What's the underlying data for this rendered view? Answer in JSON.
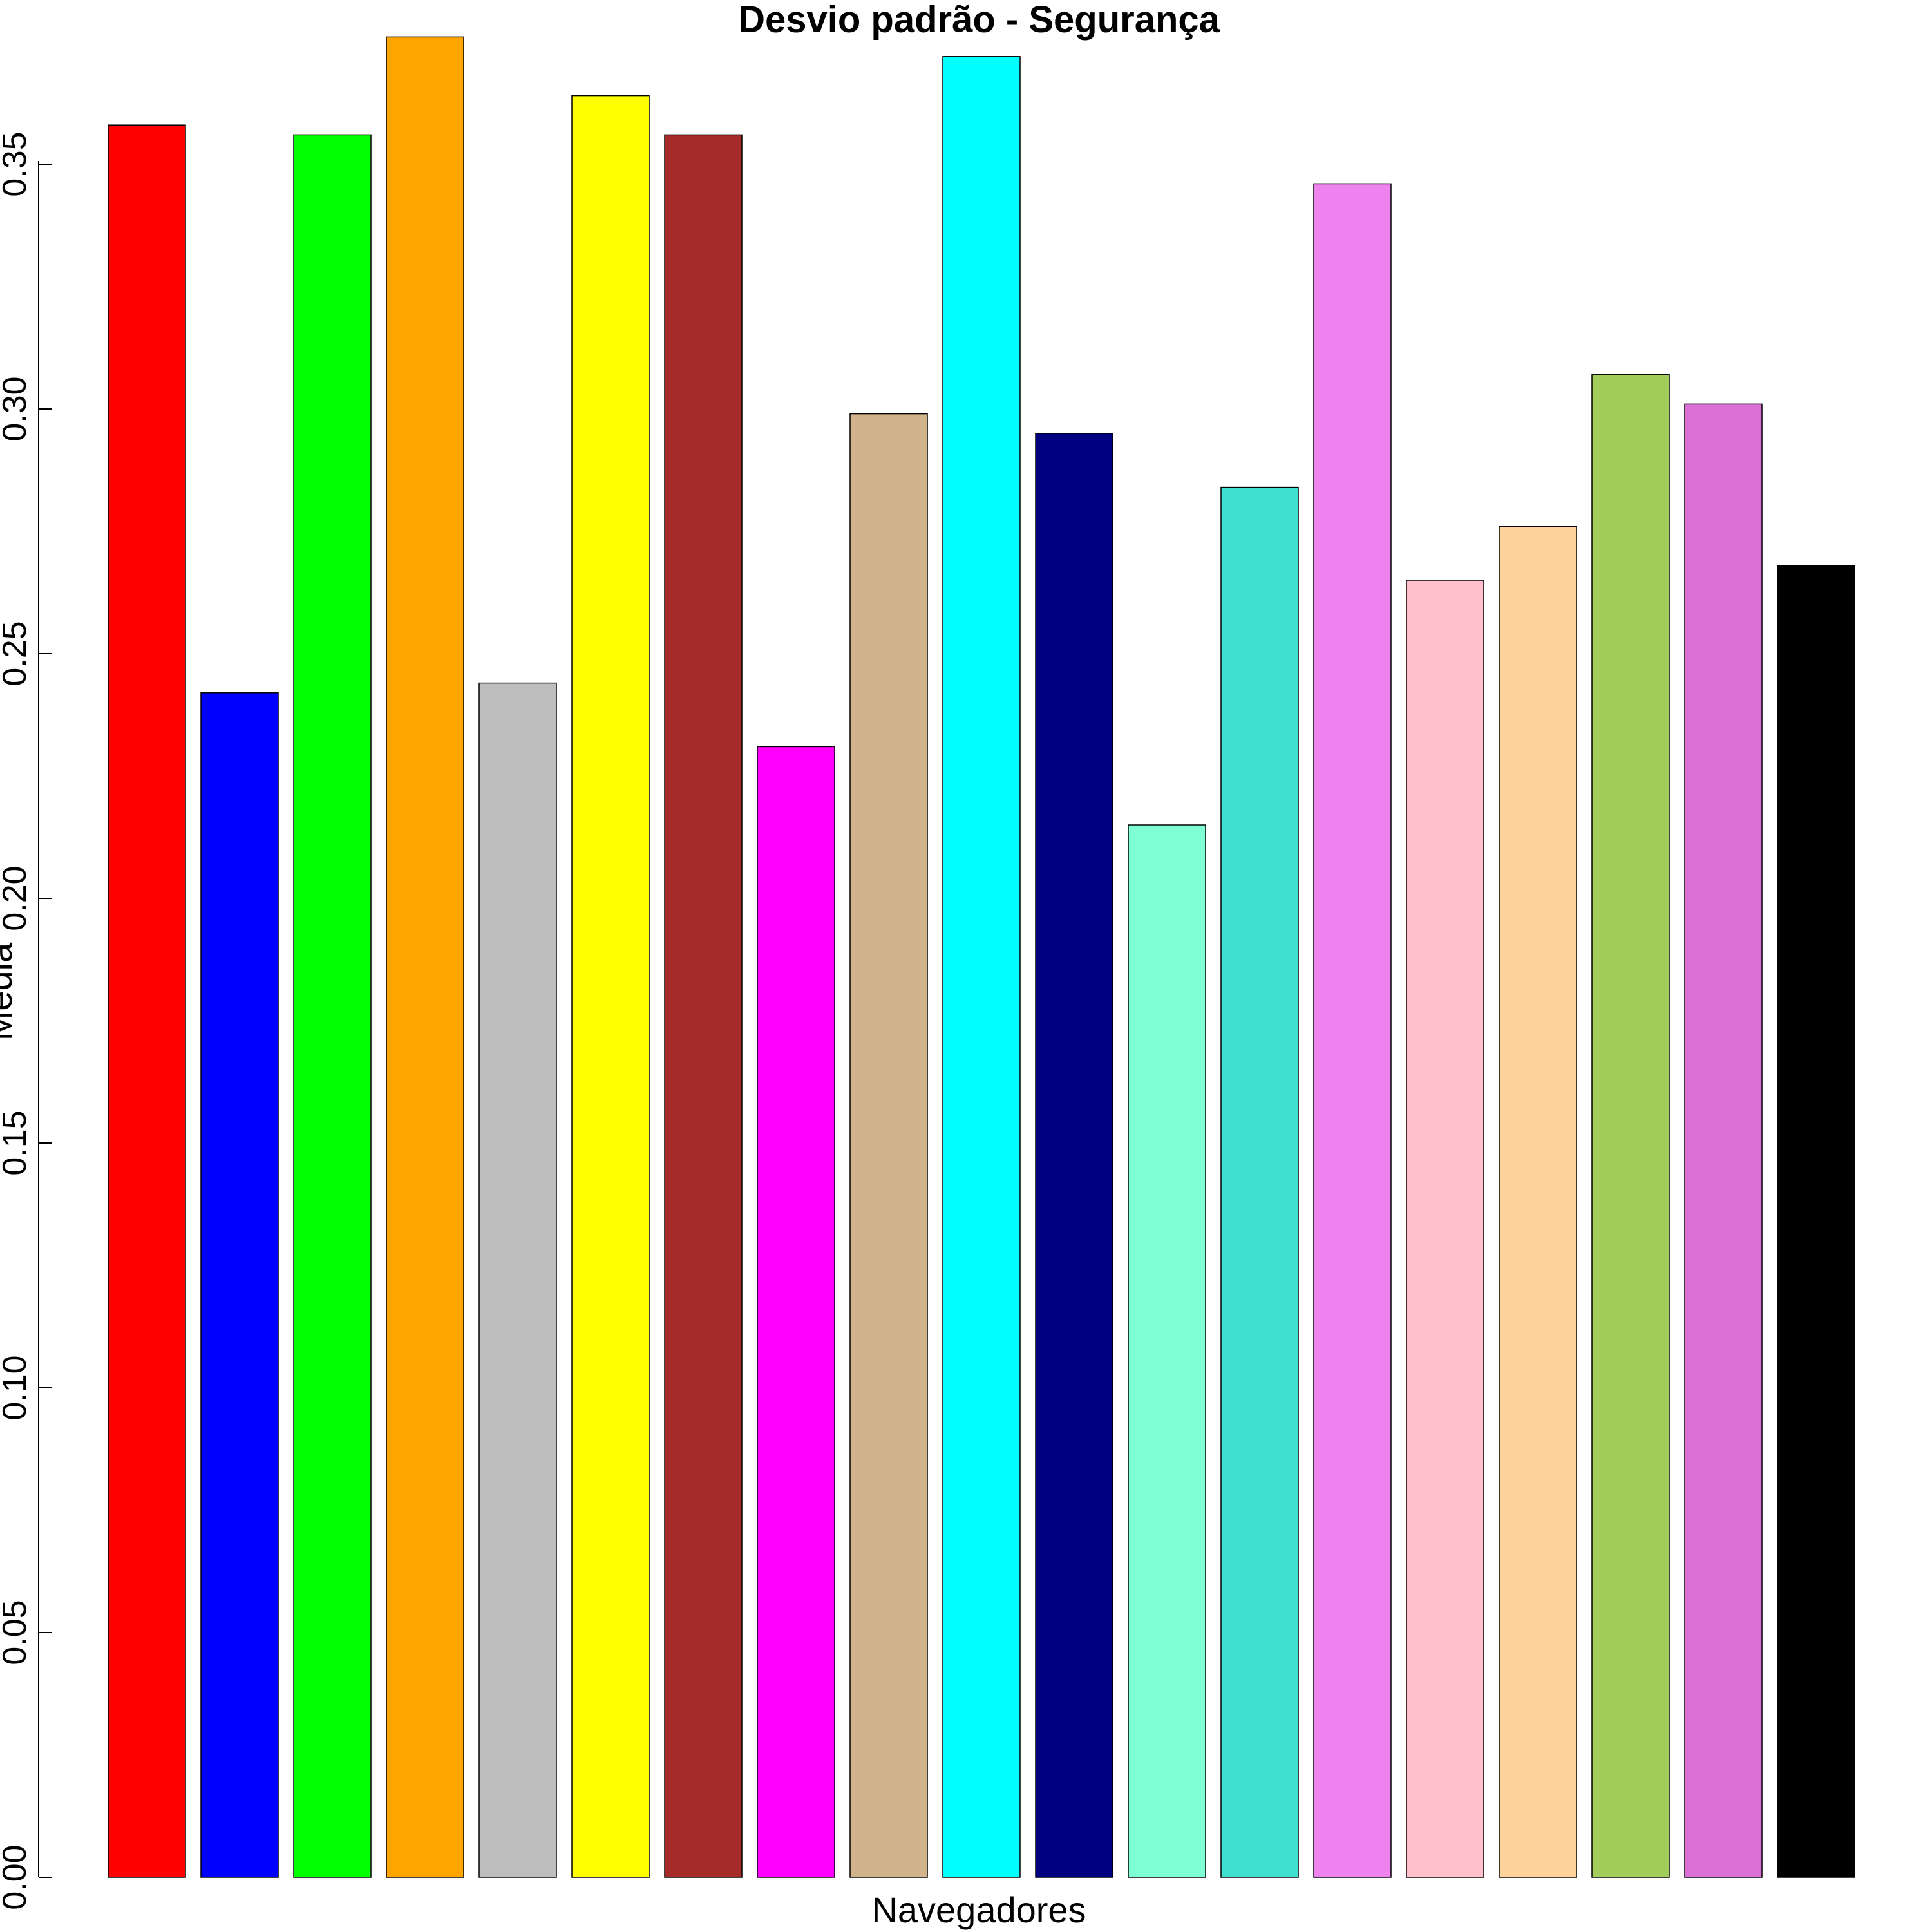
{
  "chart_data": {
    "type": "bar",
    "title": "Desvio padrão - Segurança",
    "xlabel": "Navegadores",
    "ylabel": "Media",
    "ylim": [
      0,
      0.37
    ],
    "yticks": [
      "0.00",
      "0.05",
      "0.10",
      "0.15",
      "0.20",
      "0.25",
      "0.30",
      "0.35"
    ],
    "grid": false,
    "legend": "none",
    "values": [
      0.358,
      0.242,
      0.356,
      0.376,
      0.244,
      0.364,
      0.356,
      0.231,
      0.299,
      0.372,
      0.295,
      0.215,
      0.284,
      0.346,
      0.265,
      0.276,
      0.307,
      0.301,
      0.268
    ],
    "colors": [
      "#FF0000",
      "#0000FF",
      "#00FF00",
      "#FFA500",
      "#BEBEBE",
      "#FFFF00",
      "#A52A2A",
      "#FF00FF",
      "#D2B48C",
      "#00FFFF",
      "#000080",
      "#7FFFD4",
      "#40E0D0",
      "#EE82EE",
      "#FFC0CB",
      "#FFD39B",
      "#A2CD5A",
      "#DA70D6",
      "#000000"
    ]
  }
}
